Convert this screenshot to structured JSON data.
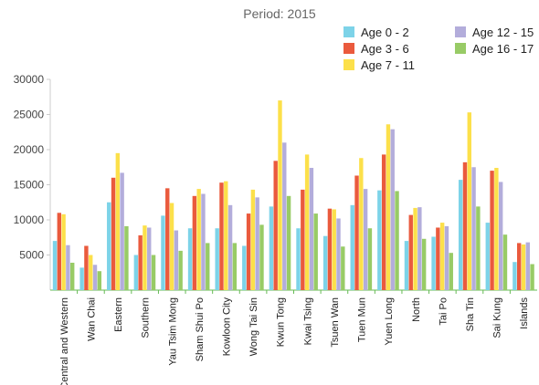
{
  "chart_data": {
    "type": "bar",
    "title": "Period: 2015",
    "xlabel": "",
    "ylabel": "",
    "ylim": [
      0,
      30000
    ],
    "yticks": [
      5000,
      10000,
      15000,
      20000,
      25000,
      30000
    ],
    "grid": false,
    "legend_position": "top-right",
    "categories": [
      "Central and Western",
      "Wan Chai",
      "Eastern",
      "Southern",
      "Yau Tsim Mong",
      "Sham Shui Po",
      "Kowloon City",
      "Wong Tai Sin",
      "Kwun Tong",
      "Kwai Tsing",
      "Tsuen Wan",
      "Tuen Mun",
      "Yuen Long",
      "North",
      "Tai Po",
      "Sha Tin",
      "Sai Kung",
      "Islands"
    ],
    "series": [
      {
        "name": "Age 0 - 2",
        "color": "#7dd3e8",
        "values": [
          7000,
          3200,
          12500,
          5000,
          10600,
          8800,
          8800,
          6300,
          11900,
          8800,
          7700,
          12100,
          14200,
          7000,
          7600,
          15700,
          9600,
          4000
        ]
      },
      {
        "name": "Age 3 - 6",
        "color": "#ea5a3d",
        "values": [
          11000,
          6300,
          16000,
          7800,
          14500,
          13400,
          15300,
          10900,
          18400,
          14300,
          11600,
          16300,
          19300,
          10700,
          8900,
          18200,
          17000,
          6700
        ]
      },
      {
        "name": "Age 7 - 11",
        "color": "#fce04a",
        "values": [
          10800,
          5000,
          19500,
          9200,
          12400,
          14400,
          15500,
          14300,
          27000,
          19300,
          11500,
          18800,
          23600,
          11700,
          9600,
          25300,
          17400,
          6500
        ]
      },
      {
        "name": "Age 12 - 15",
        "color": "#b3addb",
        "values": [
          6400,
          3600,
          16700,
          8900,
          8500,
          13700,
          12100,
          13200,
          21000,
          17400,
          10200,
          14400,
          22900,
          11800,
          9100,
          17500,
          15400,
          6800
        ]
      },
      {
        "name": "Age 16 - 17",
        "color": "#98cb66",
        "values": [
          3900,
          2700,
          9100,
          5000,
          5600,
          6700,
          6700,
          9300,
          13400,
          10900,
          6200,
          8800,
          14100,
          7300,
          5300,
          11900,
          7900,
          3700
        ]
      }
    ]
  }
}
